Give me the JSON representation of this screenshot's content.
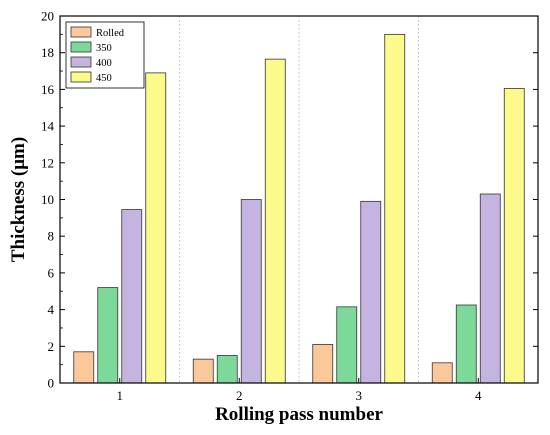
{
  "chart_data": {
    "type": "bar",
    "title": "",
    "xlabel": "Rolling pass number",
    "ylabel": "Thickness (μm)",
    "categories": [
      "1",
      "2",
      "3",
      "4"
    ],
    "ylim": [
      0,
      20
    ],
    "yticks": [
      0,
      2,
      4,
      6,
      8,
      10,
      12,
      14,
      16,
      18,
      20
    ],
    "legend_position": "top-left",
    "grid": "vertical dotted separators between groups",
    "series": [
      {
        "name": "Rolled",
        "color": "#fbc89a",
        "values": [
          1.7,
          1.3,
          2.1,
          1.1
        ]
      },
      {
        "name": "350",
        "color": "#7cd99a",
        "values": [
          5.2,
          1.5,
          4.15,
          4.25
        ]
      },
      {
        "name": "400",
        "color": "#c5b3e0",
        "values": [
          9.45,
          10.0,
          9.9,
          10.3
        ]
      },
      {
        "name": "450",
        "color": "#fbfa8a",
        "values": [
          16.9,
          17.65,
          19.0,
          16.05
        ]
      }
    ]
  }
}
